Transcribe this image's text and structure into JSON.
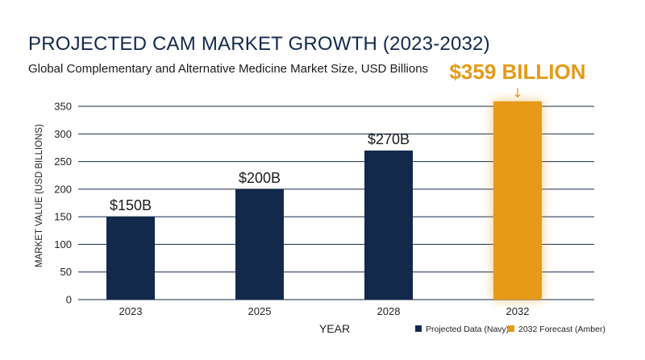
{
  "chart_data": {
    "type": "bar",
    "title": "PROJECTED CAM MARKET GROWTH (2023-2032)",
    "subtitle": "Global Complementary and Alternative Medicine Market Size, USD Billions",
    "xlabel": "YEAR",
    "ylabel": "MARKET VALUE (USD BILLIONS)",
    "categories": [
      "2023",
      "2025",
      "2028",
      "2032"
    ],
    "values": [
      150,
      200,
      270,
      359
    ],
    "data_labels": [
      "$150B",
      "$200B",
      "$270B",
      "$359 BILLION"
    ],
    "bar_colors": [
      "#13294b",
      "#13294b",
      "#13294b",
      "#e69a17"
    ],
    "ylim": [
      0,
      370
    ],
    "yticks": [
      0,
      50,
      100,
      150,
      200,
      250,
      300,
      350
    ],
    "grid": true,
    "highlight_arrow": "↓",
    "legend_position": "bottom-right",
    "legend": [
      {
        "label": "Projected Data (Navy)",
        "color": "#13294b"
      },
      {
        "label": "2032 Forecast (Amber)",
        "color": "#e69a17"
      }
    ]
  }
}
